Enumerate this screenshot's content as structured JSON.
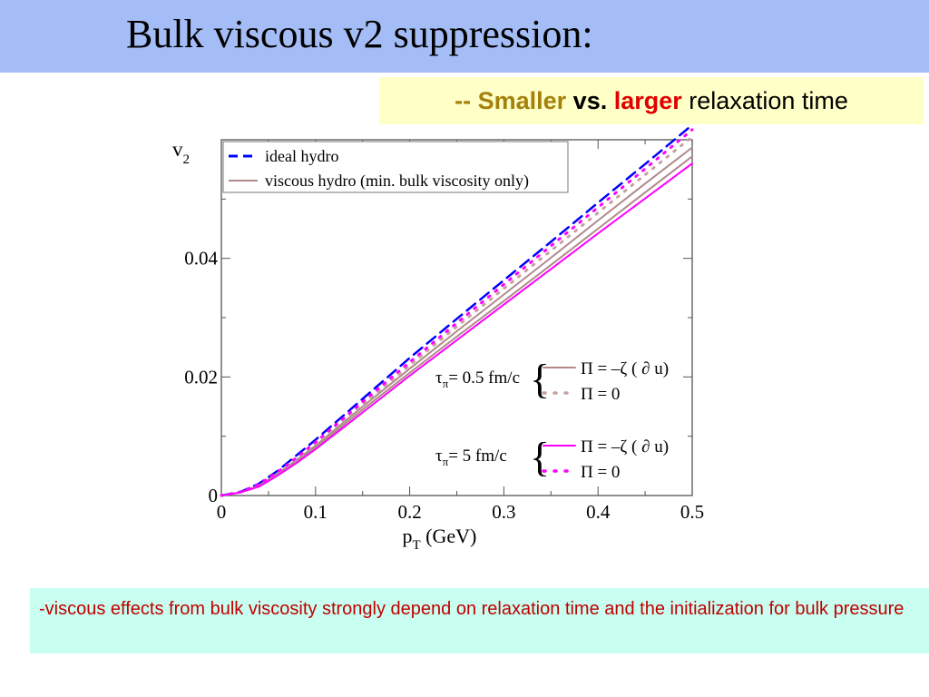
{
  "slide": {
    "title": "Bulk viscous v2 suppression:",
    "subtitle": {
      "prefix": "-- Smaller",
      "vs": "vs.",
      "larger": "larger",
      "suffix": "relaxation time"
    },
    "note": "-viscous effects from bulk viscosity strongly depend on relaxation time and the initialization for bulk pressure"
  },
  "colors": {
    "title_bg": "#a5bdf7",
    "subtitle_bg": "#ffffc8",
    "note_bg": "#c8fff0",
    "ideal": "#0000ff",
    "viscous_min": "#b08a8a",
    "tau_short": "#c8a0a0",
    "tau_long": "#ff00ff"
  },
  "chart_data": {
    "type": "line",
    "xlabel_main": "p",
    "xlabel_sub": "T",
    "xlabel_unit": "(GeV)",
    "ylabel_main": "v",
    "ylabel_sub": "2",
    "xlim": [
      0,
      0.5
    ],
    "ylim": [
      0,
      0.06
    ],
    "x_ticks": [
      "0",
      "0.1",
      "0.2",
      "0.3",
      "0.4",
      "0.5"
    ],
    "y_ticks": [
      "0",
      "0.02",
      "0.04"
    ],
    "legend_top": [
      {
        "label": "ideal hydro",
        "style": "dashed",
        "color": "#0000ff"
      },
      {
        "label": "viscous hydro (min. bulk viscosity only)",
        "style": "solid",
        "color": "#b08a8a"
      }
    ],
    "legend_groups": [
      {
        "tau_symbol": "τ",
        "tau_sub": "π",
        "tau_text": "= 0.5 fm/c",
        "entries": [
          "Π = –ζ ( ∂ u)",
          "Π = 0"
        ],
        "colors": [
          "#b08a8a",
          "#c8a0a0"
        ],
        "styles": [
          "solid",
          "dotted"
        ]
      },
      {
        "tau_symbol": "τ",
        "tau_sub": "π",
        "tau_text": "= 5 fm/c",
        "entries": [
          "Π = –ζ ( ∂ u)",
          "Π = 0"
        ],
        "colors": [
          "#ff00ff",
          "#ff00ff"
        ],
        "styles": [
          "solid",
          "dotted"
        ]
      }
    ],
    "x": [
      0,
      0.02,
      0.04,
      0.06,
      0.08,
      0.1,
      0.15,
      0.2,
      0.25,
      0.3,
      0.35,
      0.4,
      0.45,
      0.5
    ],
    "series": [
      {
        "name": "ideal hydro",
        "color": "#0000ff",
        "style": "dashed",
        "width": 2.5,
        "values": [
          0,
          0.0006,
          0.002,
          0.0042,
          0.0068,
          0.0094,
          0.0163,
          0.0232,
          0.0298,
          0.0363,
          0.0428,
          0.0494,
          0.0559,
          0.0625
        ]
      },
      {
        "name": "viscous hydro (min. bulk viscosity only)",
        "color": "#b08a8a",
        "style": "solid",
        "width": 2,
        "values": [
          0,
          0.0005,
          0.0017,
          0.0037,
          0.006,
          0.0084,
          0.015,
          0.0214,
          0.0277,
          0.0339,
          0.0401,
          0.0464,
          0.0526,
          0.0587
        ]
      },
      {
        "name": "τπ = 0.5 fm/c, Π = –ζ ( ∂ u)",
        "color": "#b08a8a",
        "style": "solid",
        "width": 2,
        "values": [
          0,
          0.0005,
          0.0016,
          0.0036,
          0.0058,
          0.0081,
          0.0145,
          0.0207,
          0.0268,
          0.0328,
          0.0389,
          0.045,
          0.0511,
          0.0572
        ]
      },
      {
        "name": "τπ = 0.5 fm/c, Π = 0",
        "color": "#c8a0a0",
        "style": "dotted",
        "width": 3,
        "values": [
          0,
          0.0006,
          0.0018,
          0.0039,
          0.0062,
          0.0087,
          0.0154,
          0.022,
          0.0285,
          0.0349,
          0.0413,
          0.0477,
          0.0541,
          0.0605
        ]
      },
      {
        "name": "τπ = 5 fm/c, Π = –ζ ( ∂ u)",
        "color": "#ff00ff",
        "style": "solid",
        "width": 2,
        "values": [
          0,
          0.0005,
          0.0015,
          0.0034,
          0.0055,
          0.0078,
          0.014,
          0.0202,
          0.0262,
          0.0322,
          0.0382,
          0.0442,
          0.0501,
          0.056
        ]
      },
      {
        "name": "τπ = 5 fm/c, Π = 0",
        "color": "#ff00ff",
        "style": "dotted",
        "width": 3,
        "values": [
          0,
          0.0006,
          0.0019,
          0.004,
          0.0064,
          0.009,
          0.0158,
          0.0225,
          0.0291,
          0.0356,
          0.0421,
          0.0486,
          0.0551,
          0.0617
        ]
      }
    ]
  }
}
